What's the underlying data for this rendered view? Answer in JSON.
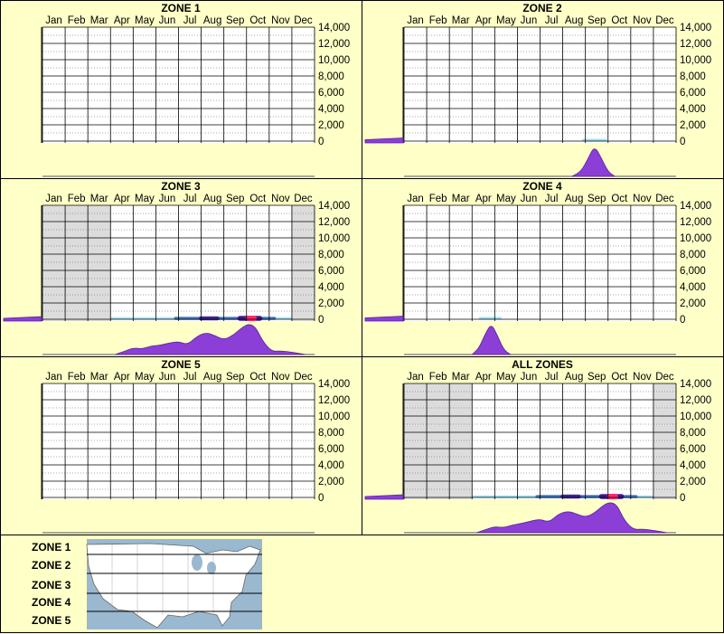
{
  "colors": {
    "background": "#ffffc8",
    "panel_border": "#000000",
    "density_fill": "#8b3fd6",
    "density_stroke": "#5a1ea0",
    "shade": "#dcdcdc",
    "heat_low": "#6bd3e8",
    "heat_mid": "#1d4fb5",
    "heat_high": "#3b0f8c",
    "heat_peak": "#ff2a6a",
    "map_water": "#9ab8d0",
    "map_land": "#ffffff"
  },
  "chart_data": [
    {
      "type": "heatmap",
      "title": "ZONE 1",
      "x_categories": [
        "Jan",
        "Feb",
        "Mar",
        "Apr",
        "May",
        "Jun",
        "Jul",
        "Aug",
        "Sep",
        "Oct",
        "Nov",
        "Dec"
      ],
      "y_ticks": [
        "14,000",
        "12,000",
        "10,000",
        "8,000",
        "6,000",
        "4,000",
        "2,000",
        "0"
      ],
      "ylim": [
        0,
        14000
      ],
      "shaded_months": [],
      "heat_bands": [],
      "month_density": [],
      "elevation_density": []
    },
    {
      "type": "heatmap",
      "title": "ZONE 2",
      "x_categories": [
        "Jan",
        "Feb",
        "Mar",
        "Apr",
        "May",
        "Jun",
        "Jul",
        "Aug",
        "Sep",
        "Oct",
        "Nov",
        "Dec"
      ],
      "y_ticks": [
        "14,000",
        "12,000",
        "10,000",
        "8,000",
        "6,000",
        "4,000",
        "2,000",
        "0"
      ],
      "ylim": [
        0,
        14000
      ],
      "shaded_months": [],
      "heat_bands": [
        {
          "x_start": 7.85,
          "x_end": 8.95,
          "intensity": 0.25
        }
      ],
      "month_density": [
        [
          7.4,
          0
        ],
        [
          7.8,
          0.15
        ],
        [
          8.1,
          0.55
        ],
        [
          8.4,
          1.0
        ],
        [
          8.7,
          0.6
        ],
        [
          9.0,
          0.15
        ],
        [
          9.3,
          0
        ]
      ],
      "elevation_density": [
        [
          0,
          0.35
        ],
        [
          1,
          0.45
        ],
        [
          2,
          0.55
        ]
      ]
    },
    {
      "type": "heatmap",
      "title": "ZONE 3",
      "x_categories": [
        "Jan",
        "Feb",
        "Mar",
        "Apr",
        "May",
        "Jun",
        "Jul",
        "Aug",
        "Sep",
        "Oct",
        "Nov",
        "Dec"
      ],
      "y_ticks": [
        "14,000",
        "12,000",
        "10,000",
        "8,000",
        "6,000",
        "4,000",
        "2,000",
        "0"
      ],
      "ylim": [
        0,
        14000
      ],
      "shaded_months": [
        0,
        1,
        2,
        11
      ],
      "heat_bands": [
        {
          "x_start": 3.0,
          "x_end": 11.0,
          "intensity": 0.15
        },
        {
          "x_start": 5.8,
          "x_end": 10.3,
          "intensity": 0.4
        },
        {
          "x_start": 6.9,
          "x_end": 7.8,
          "intensity": 0.6
        },
        {
          "x_start": 8.6,
          "x_end": 9.7,
          "intensity": 0.85
        },
        {
          "x_start": 8.95,
          "x_end": 9.45,
          "intensity": 1.0
        }
      ],
      "month_density": [
        [
          3.2,
          0
        ],
        [
          3.6,
          0.1
        ],
        [
          4.0,
          0.22
        ],
        [
          4.4,
          0.18
        ],
        [
          4.8,
          0.28
        ],
        [
          5.2,
          0.3
        ],
        [
          5.6,
          0.38
        ],
        [
          6.0,
          0.42
        ],
        [
          6.4,
          0.32
        ],
        [
          6.8,
          0.58
        ],
        [
          7.2,
          0.72
        ],
        [
          7.6,
          0.62
        ],
        [
          8.0,
          0.48
        ],
        [
          8.4,
          0.62
        ],
        [
          8.8,
          0.88
        ],
        [
          9.1,
          1.0
        ],
        [
          9.4,
          0.9
        ],
        [
          9.7,
          0.45
        ],
        [
          10.1,
          0.1
        ],
        [
          10.5,
          0.12
        ],
        [
          11.0,
          0.08
        ],
        [
          11.6,
          0
        ]
      ],
      "elevation_density": [
        [
          0,
          0.3
        ],
        [
          1,
          0.4
        ],
        [
          2,
          0.5
        ]
      ]
    },
    {
      "type": "heatmap",
      "title": "ZONE 4",
      "x_categories": [
        "Jan",
        "Feb",
        "Mar",
        "Apr",
        "May",
        "Jun",
        "Jul",
        "Aug",
        "Sep",
        "Oct",
        "Nov",
        "Dec"
      ],
      "y_ticks": [
        "14,000",
        "12,000",
        "10,000",
        "8,000",
        "6,000",
        "4,000",
        "2,000",
        "0"
      ],
      "ylim": [
        0,
        14000
      ],
      "shaded_months": [],
      "heat_bands": [
        {
          "x_start": 3.3,
          "x_end": 4.3,
          "intensity": 0.22
        }
      ],
      "month_density": [
        [
          3.0,
          0
        ],
        [
          3.3,
          0.2
        ],
        [
          3.6,
          0.7
        ],
        [
          3.85,
          1.0
        ],
        [
          4.1,
          0.65
        ],
        [
          4.4,
          0.15
        ],
        [
          4.7,
          0
        ]
      ],
      "elevation_density": [
        [
          0,
          0.35
        ],
        [
          1,
          0.45
        ],
        [
          2,
          0.55
        ]
      ]
    },
    {
      "type": "heatmap",
      "title": "ZONE 5",
      "x_categories": [
        "Jan",
        "Feb",
        "Mar",
        "Apr",
        "May",
        "Jun",
        "Jul",
        "Aug",
        "Sep",
        "Oct",
        "Nov",
        "Dec"
      ],
      "y_ticks": [
        "14,000",
        "12,000",
        "10,000",
        "8,000",
        "6,000",
        "4,000",
        "2,000",
        "0"
      ],
      "ylim": [
        0,
        14000
      ],
      "shaded_months": [],
      "heat_bands": [],
      "month_density": [],
      "elevation_density": []
    },
    {
      "type": "heatmap",
      "title": "ALL ZONES",
      "x_categories": [
        "Jan",
        "Feb",
        "Mar",
        "Apr",
        "May",
        "Jun",
        "Jul",
        "Aug",
        "Sep",
        "Oct",
        "Nov",
        "Dec"
      ],
      "y_ticks": [
        "14,000",
        "12,000",
        "10,000",
        "8,000",
        "6,000",
        "4,000",
        "2,000",
        "0"
      ],
      "ylim": [
        0,
        14000
      ],
      "shaded_months": [
        0,
        1,
        2,
        11
      ],
      "heat_bands": [
        {
          "x_start": 3.0,
          "x_end": 11.0,
          "intensity": 0.15
        },
        {
          "x_start": 5.8,
          "x_end": 10.3,
          "intensity": 0.4
        },
        {
          "x_start": 6.9,
          "x_end": 7.8,
          "intensity": 0.6
        },
        {
          "x_start": 8.6,
          "x_end": 9.7,
          "intensity": 0.85
        },
        {
          "x_start": 8.95,
          "x_end": 9.45,
          "intensity": 1.0
        }
      ],
      "month_density": [
        [
          3.2,
          0
        ],
        [
          3.6,
          0.1
        ],
        [
          4.0,
          0.2
        ],
        [
          4.4,
          0.16
        ],
        [
          4.8,
          0.26
        ],
        [
          5.2,
          0.3
        ],
        [
          5.6,
          0.38
        ],
        [
          6.0,
          0.44
        ],
        [
          6.4,
          0.34
        ],
        [
          6.8,
          0.6
        ],
        [
          7.2,
          0.7
        ],
        [
          7.6,
          0.62
        ],
        [
          8.0,
          0.5
        ],
        [
          8.4,
          0.64
        ],
        [
          8.8,
          0.9
        ],
        [
          9.1,
          1.0
        ],
        [
          9.4,
          0.9
        ],
        [
          9.7,
          0.42
        ],
        [
          10.1,
          0.1
        ],
        [
          10.5,
          0.12
        ],
        [
          11.0,
          0.08
        ],
        [
          11.6,
          0
        ]
      ],
      "elevation_density": [
        [
          0,
          0.3
        ],
        [
          1,
          0.4
        ],
        [
          2,
          0.5
        ]
      ]
    }
  ],
  "legend": {
    "zones": [
      "ZONE 1",
      "ZONE 2",
      "ZONE 3",
      "ZONE 4",
      "ZONE 5"
    ]
  }
}
